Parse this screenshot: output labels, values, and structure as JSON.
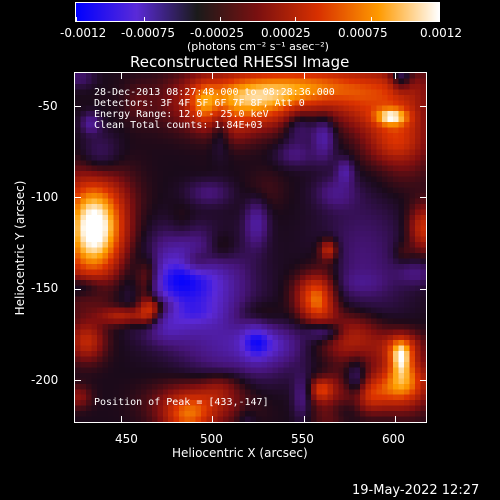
{
  "colorbar": {
    "ticks": [
      "-0.0012",
      "-0.00075",
      "-0.00025",
      "0.00025",
      "0.00075",
      "0.0012"
    ],
    "unit_label": "(photons cm⁻² s⁻¹ asec⁻²)",
    "colors": [
      "#0000ff",
      "#5a2ad8",
      "#1a1a1a",
      "#7a1010",
      "#d83000",
      "#ff9a00",
      "#ffffff"
    ]
  },
  "plot_title": "Reconstructed RHESSI Image",
  "annotations": [
    "28-Dec-2013 08:27:48.000 to 08:28:36.000",
    "Detectors: 3F 4F 5F 6F 7F 8F, Att 0",
    "Energy Range: 12.0 - 25.0 keV",
    "Clean    Total counts: 1.84E+03"
  ],
  "peak_label": "Position of Peak = [433,-147]",
  "footer_timestamp": "19-May-2022 12:27",
  "chart_data": {
    "type": "heatmap",
    "title": "Reconstructed RHESSI Image",
    "xlabel": "Heliocentric X (arcsec)",
    "ylabel": "Heliocentric Y (arcsec)",
    "xlim": [
      425,
      617
    ],
    "ylim": [
      -223,
      -32
    ],
    "xticks": [
      450,
      500,
      550,
      600
    ],
    "yticks": [
      -50,
      -100,
      -150,
      -200
    ],
    "colorbar_range": [
      -0.0012,
      0.0012
    ],
    "peak_position": [
      433,
      -147
    ],
    "grid": false,
    "legend": "none",
    "colormap": "blue-purple-black-red-orange-white"
  }
}
